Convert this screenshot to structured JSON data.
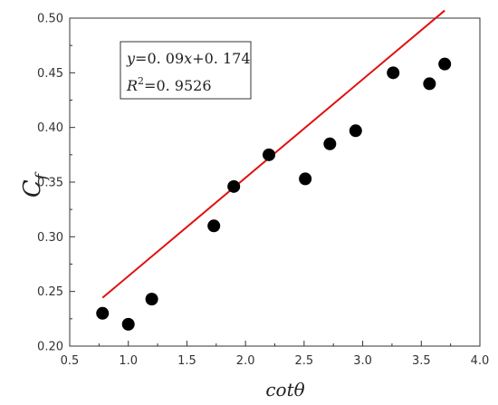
{
  "chart_data": {
    "type": "scatter",
    "xlabel": "cotθ",
    "ylabel": {
      "base": "C",
      "sub": "f"
    },
    "xlim": [
      0.5,
      4.0
    ],
    "ylim": [
      0.2,
      0.5
    ],
    "x_ticks": [
      "0.5",
      "1.0",
      "1.5",
      "2.0",
      "2.5",
      "3.0",
      "3.5",
      "4.0"
    ],
    "y_ticks": [
      "0.20",
      "0.25",
      "0.30",
      "0.35",
      "0.40",
      "0.45",
      "0.50"
    ],
    "grid": false,
    "points": [
      {
        "x": 0.78,
        "y": 0.23
      },
      {
        "x": 1.0,
        "y": 0.22
      },
      {
        "x": 1.2,
        "y": 0.243
      },
      {
        "x": 1.73,
        "y": 0.31
      },
      {
        "x": 1.9,
        "y": 0.346
      },
      {
        "x": 2.2,
        "y": 0.375
      },
      {
        "x": 2.51,
        "y": 0.353
      },
      {
        "x": 2.72,
        "y": 0.385
      },
      {
        "x": 2.94,
        "y": 0.397
      },
      {
        "x": 3.26,
        "y": 0.45
      },
      {
        "x": 3.57,
        "y": 0.44
      },
      {
        "x": 3.7,
        "y": 0.458
      }
    ],
    "fit": {
      "slope": 0.09,
      "intercept": 0.174,
      "x_range": [
        0.78,
        3.7
      ],
      "color": "#e01010"
    },
    "annotation": {
      "equation": {
        "y": "y",
        "eq": "=0. 09",
        "x": "x",
        "rest": "+0. 174"
      },
      "r2": {
        "R": "R",
        "sup": "2",
        "rest": "=0. 9526"
      }
    },
    "marker_color": "#000000"
  }
}
